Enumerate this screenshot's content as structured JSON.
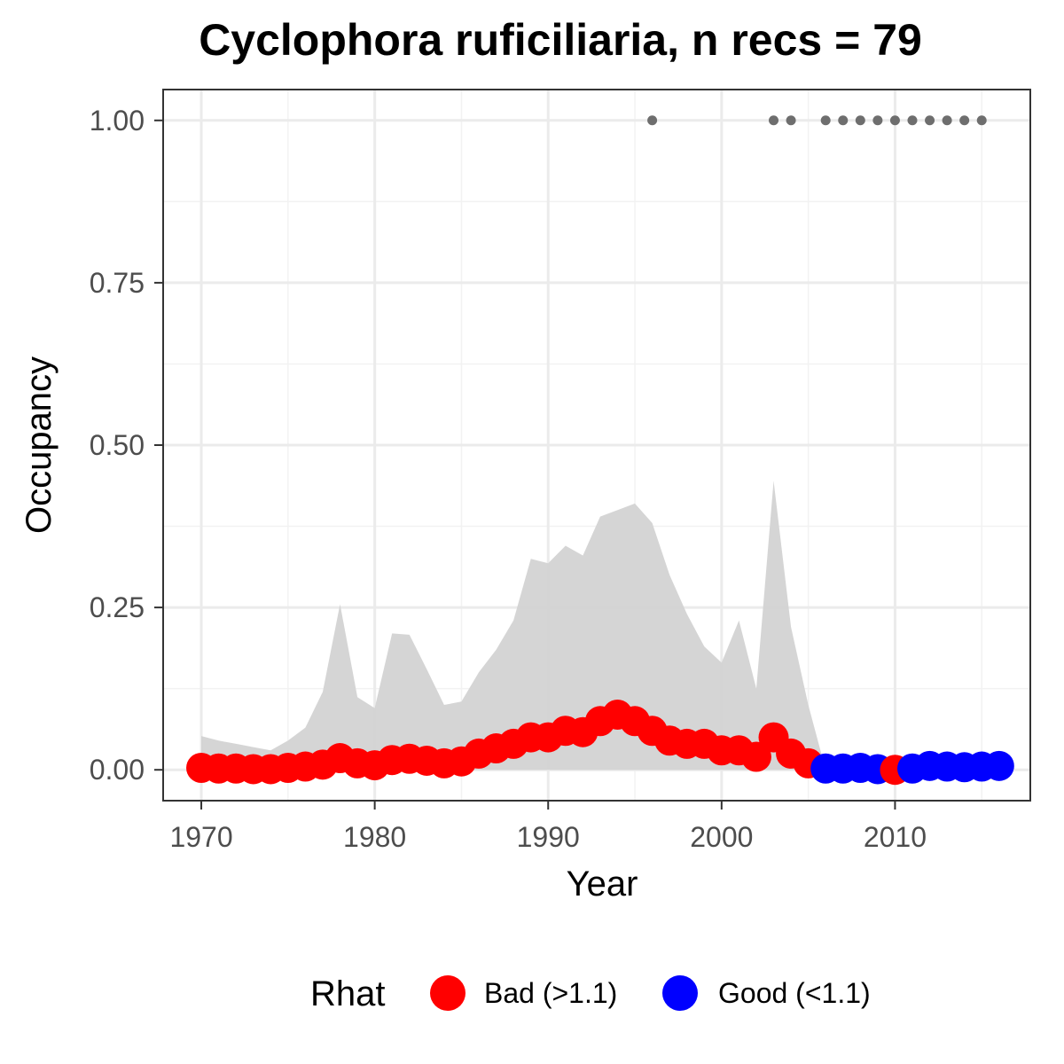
{
  "chart_data": {
    "type": "scatter",
    "title": "Cyclophora ruficiliaria, n recs = 79",
    "xlabel": "Year",
    "ylabel": "Occupancy",
    "xlim": [
      1967.8,
      2017.8
    ],
    "ylim": [
      -0.0475,
      1.0475
    ],
    "x_ticks": [
      1970,
      1980,
      1990,
      2000,
      2010
    ],
    "x_tick_labels": [
      "1970",
      "1980",
      "1990",
      "2000",
      "2010"
    ],
    "y_ticks": [
      0,
      0.25,
      0.5,
      0.75,
      1.0
    ],
    "y_tick_labels": [
      "0.00",
      "0.25",
      "0.50",
      "0.75",
      "1.00"
    ],
    "grid": true,
    "legend": {
      "title": "Rhat",
      "position": "bottom",
      "entries": [
        {
          "label": "Bad (>1.1)",
          "color": "#ff0000"
        },
        {
          "label": "Good (<1.1)",
          "color": "#0000ff"
        }
      ]
    },
    "colors": {
      "bad": "#ff0000",
      "good": "#0000ff",
      "ribbon": "#d3d3d3",
      "records": "#6e6e6e"
    },
    "years": [
      1970,
      1971,
      1972,
      1973,
      1974,
      1975,
      1976,
      1977,
      1978,
      1979,
      1980,
      1981,
      1982,
      1983,
      1984,
      1985,
      1986,
      1987,
      1988,
      1989,
      1990,
      1991,
      1992,
      1993,
      1994,
      1995,
      1996,
      1997,
      1998,
      1999,
      2000,
      2001,
      2002,
      2003,
      2004,
      2005,
      2006,
      2007,
      2008,
      2009,
      2010,
      2011,
      2012,
      2013,
      2014,
      2015,
      2016
    ],
    "occupancy": [
      0.003,
      0.002,
      0.002,
      0.001,
      0.001,
      0.003,
      0.005,
      0.008,
      0.018,
      0.01,
      0.007,
      0.015,
      0.017,
      0.014,
      0.01,
      0.013,
      0.025,
      0.033,
      0.04,
      0.05,
      0.05,
      0.06,
      0.058,
      0.075,
      0.085,
      0.075,
      0.06,
      0.045,
      0.04,
      0.04,
      0.03,
      0.03,
      0.02,
      0.05,
      0.025,
      0.01,
      0.002,
      0.002,
      0.003,
      0.001,
      0.0,
      0.002,
      0.006,
      0.005,
      0.004,
      0.005,
      0.006
    ],
    "rhat": [
      "Bad (>1.1)",
      "Bad (>1.1)",
      "Bad (>1.1)",
      "Bad (>1.1)",
      "Bad (>1.1)",
      "Bad (>1.1)",
      "Bad (>1.1)",
      "Bad (>1.1)",
      "Bad (>1.1)",
      "Bad (>1.1)",
      "Bad (>1.1)",
      "Bad (>1.1)",
      "Bad (>1.1)",
      "Bad (>1.1)",
      "Bad (>1.1)",
      "Bad (>1.1)",
      "Bad (>1.1)",
      "Bad (>1.1)",
      "Bad (>1.1)",
      "Bad (>1.1)",
      "Bad (>1.1)",
      "Bad (>1.1)",
      "Bad (>1.1)",
      "Bad (>1.1)",
      "Bad (>1.1)",
      "Bad (>1.1)",
      "Bad (>1.1)",
      "Bad (>1.1)",
      "Bad (>1.1)",
      "Bad (>1.1)",
      "Bad (>1.1)",
      "Bad (>1.1)",
      "Bad (>1.1)",
      "Bad (>1.1)",
      "Bad (>1.1)",
      "Bad (>1.1)",
      "Good (<1.1)",
      "Good (<1.1)",
      "Good (<1.1)",
      "Good (<1.1)",
      "Bad (>1.1)",
      "Good (<1.1)",
      "Good (<1.1)",
      "Good (<1.1)",
      "Good (<1.1)",
      "Good (<1.1)",
      "Good (<1.1)"
    ],
    "upper_ci": [
      0.052,
      0.045,
      0.04,
      0.035,
      0.03,
      0.045,
      0.065,
      0.12,
      0.255,
      0.112,
      0.095,
      0.21,
      0.208,
      0.155,
      0.1,
      0.105,
      0.15,
      0.185,
      0.23,
      0.325,
      0.318,
      0.345,
      0.33,
      0.39,
      0.4,
      0.41,
      0.38,
      0.3,
      0.24,
      0.19,
      0.165,
      0.23,
      0.125,
      0.445,
      0.22,
      0.1,
      0.0,
      0.0,
      0.0,
      0.0,
      0.0,
      0.0,
      0.0,
      0.0,
      0.0,
      0.0,
      0.0
    ],
    "lower_ci": [
      0,
      0,
      0,
      0,
      0,
      0,
      0,
      0,
      0,
      0,
      0,
      0,
      0,
      0,
      0,
      0,
      0,
      0,
      0,
      0,
      0,
      0,
      0,
      0,
      0,
      0,
      0,
      0,
      0,
      0,
      0,
      0,
      0,
      0,
      0,
      0,
      0,
      0,
      0,
      0,
      0,
      0,
      0,
      0,
      0,
      0,
      0
    ],
    "record_years": [
      1996,
      2003,
      2004,
      2006,
      2007,
      2008,
      2009,
      2010,
      2011,
      2012,
      2013,
      2014,
      2015
    ],
    "record_value": 1.0
  }
}
